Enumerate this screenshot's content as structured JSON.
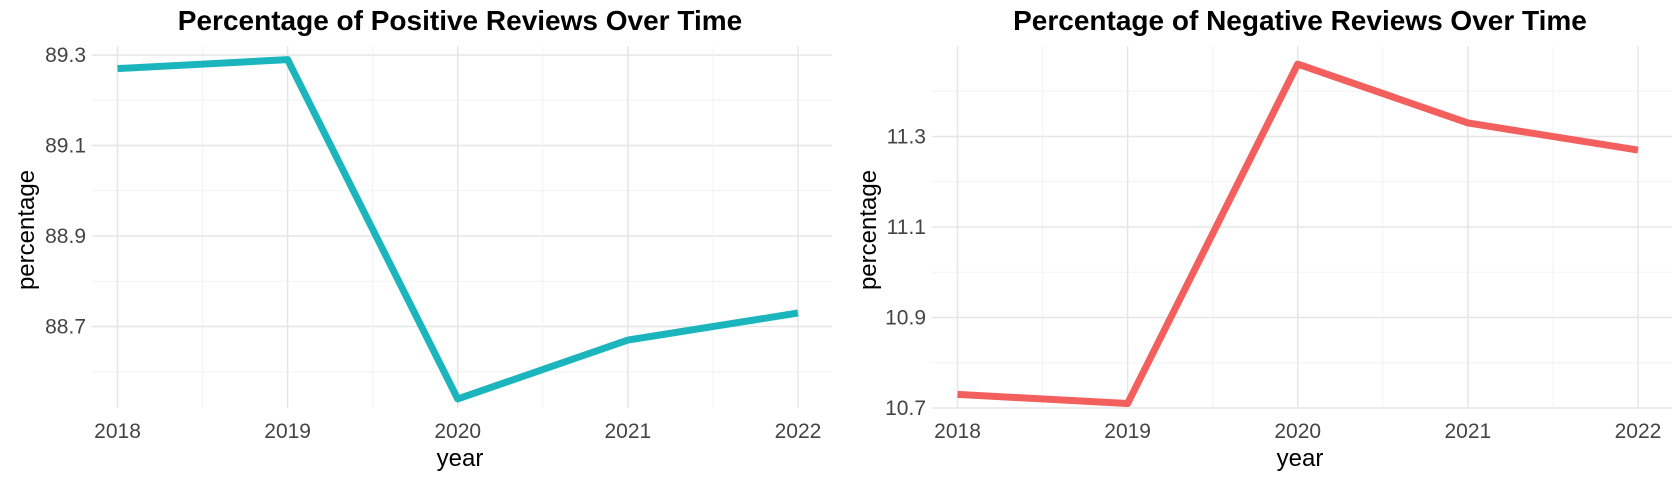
{
  "chart_data": [
    {
      "type": "line",
      "title": "Percentage of Positive Reviews Over Time",
      "xlabel": "year",
      "ylabel": "percentage",
      "x": [
        2018,
        2019,
        2020,
        2021,
        2022
      ],
      "series": [
        {
          "values": [
            89.27,
            89.29,
            88.54,
            88.67,
            88.73
          ],
          "color": "#1BB6BD"
        }
      ],
      "x_ticks": [
        "2018",
        "2019",
        "2020",
        "2021",
        "2022"
      ],
      "y_ticks": [
        "88.7",
        "88.9",
        "89.1",
        "89.3"
      ],
      "ylim": [
        88.52,
        89.32
      ],
      "xlim": [
        2017.85,
        2022.2
      ],
      "grid": true,
      "legend": "none"
    },
    {
      "type": "line",
      "title": "Percentage of Negative Reviews Over Time",
      "xlabel": "year",
      "ylabel": "percentage",
      "x": [
        2018,
        2019,
        2020,
        2021,
        2022
      ],
      "series": [
        {
          "values": [
            10.73,
            10.71,
            11.46,
            11.33,
            11.27
          ],
          "color": "#F25F5C"
        }
      ],
      "x_ticks": [
        "2018",
        "2019",
        "2020",
        "2021",
        "2022"
      ],
      "y_ticks": [
        "10.7",
        "10.9",
        "11.1",
        "11.3"
      ],
      "ylim": [
        10.7,
        11.5
      ],
      "xlim": [
        2017.85,
        2022.2
      ],
      "grid": true,
      "legend": "none"
    }
  ]
}
